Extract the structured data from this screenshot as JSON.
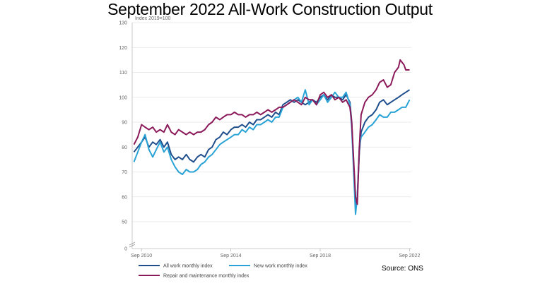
{
  "title": "September 2022 All-Work Construction Output",
  "source": "Source: ONS",
  "chart_data": {
    "type": "line",
    "ylabel": "Index 2019=100",
    "ylim": [
      0,
      130
    ],
    "axis_break": [
      0,
      45
    ],
    "yticks": [
      0,
      50,
      60,
      70,
      80,
      90,
      100,
      110,
      120,
      130
    ],
    "xticks": [
      {
        "x": 2010.667,
        "label": "Sep 2010"
      },
      {
        "x": 2014.667,
        "label": "Sep 2014"
      },
      {
        "x": 2018.667,
        "label": "Sep 2018"
      },
      {
        "x": 2022.667,
        "label": "Sep 2022"
      }
    ],
    "xlim": [
      2010.25,
      2022.75
    ],
    "grid": "horizontal",
    "legend_position": "bottom",
    "series": [
      {
        "name": "All work monthly index",
        "color": "#1f4e8c",
        "points": [
          [
            2010.33,
            78
          ],
          [
            2010.5,
            80
          ],
          [
            2010.67,
            82
          ],
          [
            2010.83,
            84
          ],
          [
            2011.0,
            80
          ],
          [
            2011.17,
            82
          ],
          [
            2011.33,
            81
          ],
          [
            2011.5,
            83
          ],
          [
            2011.67,
            80
          ],
          [
            2011.83,
            82
          ],
          [
            2012.0,
            77
          ],
          [
            2012.17,
            75
          ],
          [
            2012.33,
            76
          ],
          [
            2012.5,
            75
          ],
          [
            2012.67,
            77
          ],
          [
            2012.83,
            75
          ],
          [
            2013.0,
            74
          ],
          [
            2013.17,
            76
          ],
          [
            2013.33,
            77
          ],
          [
            2013.5,
            76
          ],
          [
            2013.67,
            79
          ],
          [
            2013.83,
            80
          ],
          [
            2014.0,
            83
          ],
          [
            2014.17,
            84
          ],
          [
            2014.33,
            86
          ],
          [
            2014.5,
            85
          ],
          [
            2014.67,
            87
          ],
          [
            2014.83,
            88
          ],
          [
            2015.0,
            88
          ],
          [
            2015.17,
            89
          ],
          [
            2015.33,
            88
          ],
          [
            2015.5,
            90
          ],
          [
            2015.67,
            89
          ],
          [
            2015.83,
            91
          ],
          [
            2016.0,
            91
          ],
          [
            2016.17,
            92
          ],
          [
            2016.33,
            93
          ],
          [
            2016.5,
            92
          ],
          [
            2016.67,
            94
          ],
          [
            2016.83,
            93
          ],
          [
            2017.0,
            97
          ],
          [
            2017.17,
            98
          ],
          [
            2017.33,
            99
          ],
          [
            2017.5,
            98
          ],
          [
            2017.67,
            99
          ],
          [
            2017.83,
            98
          ],
          [
            2018.0,
            97
          ],
          [
            2018.17,
            98
          ],
          [
            2018.33,
            99
          ],
          [
            2018.5,
            98
          ],
          [
            2018.67,
            100
          ],
          [
            2018.83,
            101
          ],
          [
            2019.0,
            99
          ],
          [
            2019.17,
            101
          ],
          [
            2019.33,
            100
          ],
          [
            2019.5,
            100
          ],
          [
            2019.67,
            99
          ],
          [
            2019.83,
            101
          ],
          [
            2020.0,
            98
          ],
          [
            2020.08,
            90
          ],
          [
            2020.25,
            56
          ],
          [
            2020.33,
            60
          ],
          [
            2020.42,
            78
          ],
          [
            2020.5,
            86
          ],
          [
            2020.67,
            90
          ],
          [
            2020.83,
            92
          ],
          [
            2021.0,
            93
          ],
          [
            2021.17,
            95
          ],
          [
            2021.33,
            98
          ],
          [
            2021.5,
            99
          ],
          [
            2021.67,
            97
          ],
          [
            2021.83,
            98
          ],
          [
            2022.0,
            99
          ],
          [
            2022.17,
            100
          ],
          [
            2022.33,
            101
          ],
          [
            2022.5,
            102
          ],
          [
            2022.67,
            103
          ]
        ]
      },
      {
        "name": "New work monthly index",
        "color": "#29a3d6",
        "points": [
          [
            2010.33,
            74
          ],
          [
            2010.5,
            78
          ],
          [
            2010.67,
            82
          ],
          [
            2010.83,
            85
          ],
          [
            2011.0,
            79
          ],
          [
            2011.17,
            76
          ],
          [
            2011.33,
            79
          ],
          [
            2011.5,
            82
          ],
          [
            2011.67,
            78
          ],
          [
            2011.83,
            80
          ],
          [
            2012.0,
            75
          ],
          [
            2012.17,
            72
          ],
          [
            2012.33,
            70
          ],
          [
            2012.5,
            69
          ],
          [
            2012.67,
            71
          ],
          [
            2012.83,
            70
          ],
          [
            2013.0,
            70
          ],
          [
            2013.17,
            71
          ],
          [
            2013.33,
            73
          ],
          [
            2013.5,
            74
          ],
          [
            2013.67,
            76
          ],
          [
            2013.83,
            77
          ],
          [
            2014.0,
            79
          ],
          [
            2014.17,
            81
          ],
          [
            2014.33,
            82
          ],
          [
            2014.5,
            83
          ],
          [
            2014.67,
            84
          ],
          [
            2014.83,
            85
          ],
          [
            2015.0,
            85
          ],
          [
            2015.17,
            87
          ],
          [
            2015.33,
            86
          ],
          [
            2015.5,
            88
          ],
          [
            2015.67,
            87
          ],
          [
            2015.83,
            89
          ],
          [
            2016.0,
            89
          ],
          [
            2016.17,
            90
          ],
          [
            2016.33,
            91
          ],
          [
            2016.5,
            90
          ],
          [
            2016.67,
            92
          ],
          [
            2016.83,
            92
          ],
          [
            2017.0,
            96
          ],
          [
            2017.17,
            97
          ],
          [
            2017.33,
            98
          ],
          [
            2017.5,
            99
          ],
          [
            2017.67,
            100
          ],
          [
            2017.83,
            98
          ],
          [
            2018.0,
            103
          ],
          [
            2018.17,
            97
          ],
          [
            2018.33,
            99
          ],
          [
            2018.5,
            97
          ],
          [
            2018.67,
            99
          ],
          [
            2018.83,
            101
          ],
          [
            2019.0,
            98
          ],
          [
            2019.17,
            100
          ],
          [
            2019.33,
            102
          ],
          [
            2019.5,
            100
          ],
          [
            2019.67,
            100
          ],
          [
            2019.83,
            102
          ],
          [
            2020.0,
            97
          ],
          [
            2020.08,
            88
          ],
          [
            2020.25,
            53
          ],
          [
            2020.33,
            60
          ],
          [
            2020.42,
            80
          ],
          [
            2020.5,
            84
          ],
          [
            2020.67,
            86
          ],
          [
            2020.83,
            88
          ],
          [
            2021.0,
            89
          ],
          [
            2021.17,
            91
          ],
          [
            2021.33,
            93
          ],
          [
            2021.5,
            92
          ],
          [
            2021.67,
            92
          ],
          [
            2021.83,
            94
          ],
          [
            2022.0,
            94
          ],
          [
            2022.17,
            95
          ],
          [
            2022.33,
            96
          ],
          [
            2022.5,
            96
          ],
          [
            2022.67,
            99
          ]
        ]
      },
      {
        "name": "Repair and maintenance monthly index",
        "color": "#8b1a5a",
        "points": [
          [
            2010.33,
            81
          ],
          [
            2010.5,
            84
          ],
          [
            2010.67,
            89
          ],
          [
            2010.83,
            88
          ],
          [
            2011.0,
            87
          ],
          [
            2011.17,
            88
          ],
          [
            2011.33,
            86
          ],
          [
            2011.5,
            87
          ],
          [
            2011.67,
            86
          ],
          [
            2011.83,
            89
          ],
          [
            2012.0,
            86
          ],
          [
            2012.17,
            85
          ],
          [
            2012.33,
            87
          ],
          [
            2012.5,
            86
          ],
          [
            2012.67,
            85
          ],
          [
            2012.83,
            86
          ],
          [
            2013.0,
            85
          ],
          [
            2013.17,
            86
          ],
          [
            2013.33,
            86
          ],
          [
            2013.5,
            87
          ],
          [
            2013.67,
            89
          ],
          [
            2013.83,
            90
          ],
          [
            2014.0,
            92
          ],
          [
            2014.17,
            91
          ],
          [
            2014.33,
            92
          ],
          [
            2014.5,
            93
          ],
          [
            2014.67,
            93
          ],
          [
            2014.83,
            94
          ],
          [
            2015.0,
            93
          ],
          [
            2015.17,
            93
          ],
          [
            2015.33,
            92
          ],
          [
            2015.5,
            93
          ],
          [
            2015.67,
            93
          ],
          [
            2015.83,
            94
          ],
          [
            2016.0,
            93
          ],
          [
            2016.17,
            94
          ],
          [
            2016.33,
            95
          ],
          [
            2016.5,
            94
          ],
          [
            2016.67,
            95
          ],
          [
            2016.83,
            96
          ],
          [
            2017.0,
            96
          ],
          [
            2017.17,
            97
          ],
          [
            2017.33,
            98
          ],
          [
            2017.5,
            99
          ],
          [
            2017.67,
            98
          ],
          [
            2017.83,
            97
          ],
          [
            2018.0,
            100
          ],
          [
            2018.17,
            99
          ],
          [
            2018.33,
            99
          ],
          [
            2018.5,
            97
          ],
          [
            2018.67,
            101
          ],
          [
            2018.83,
            102
          ],
          [
            2019.0,
            100
          ],
          [
            2019.17,
            101
          ],
          [
            2019.33,
            99
          ],
          [
            2019.5,
            100
          ],
          [
            2019.67,
            98
          ],
          [
            2019.83,
            99
          ],
          [
            2020.0,
            96
          ],
          [
            2020.08,
            90
          ],
          [
            2020.25,
            60
          ],
          [
            2020.33,
            57
          ],
          [
            2020.42,
            80
          ],
          [
            2020.5,
            93
          ],
          [
            2020.67,
            98
          ],
          [
            2020.83,
            100
          ],
          [
            2021.0,
            101
          ],
          [
            2021.17,
            103
          ],
          [
            2021.33,
            106
          ],
          [
            2021.5,
            107
          ],
          [
            2021.67,
            104
          ],
          [
            2021.83,
            105
          ],
          [
            2022.0,
            110
          ],
          [
            2022.17,
            112
          ],
          [
            2022.25,
            115
          ],
          [
            2022.42,
            113
          ],
          [
            2022.5,
            111
          ],
          [
            2022.67,
            111
          ]
        ]
      }
    ]
  }
}
